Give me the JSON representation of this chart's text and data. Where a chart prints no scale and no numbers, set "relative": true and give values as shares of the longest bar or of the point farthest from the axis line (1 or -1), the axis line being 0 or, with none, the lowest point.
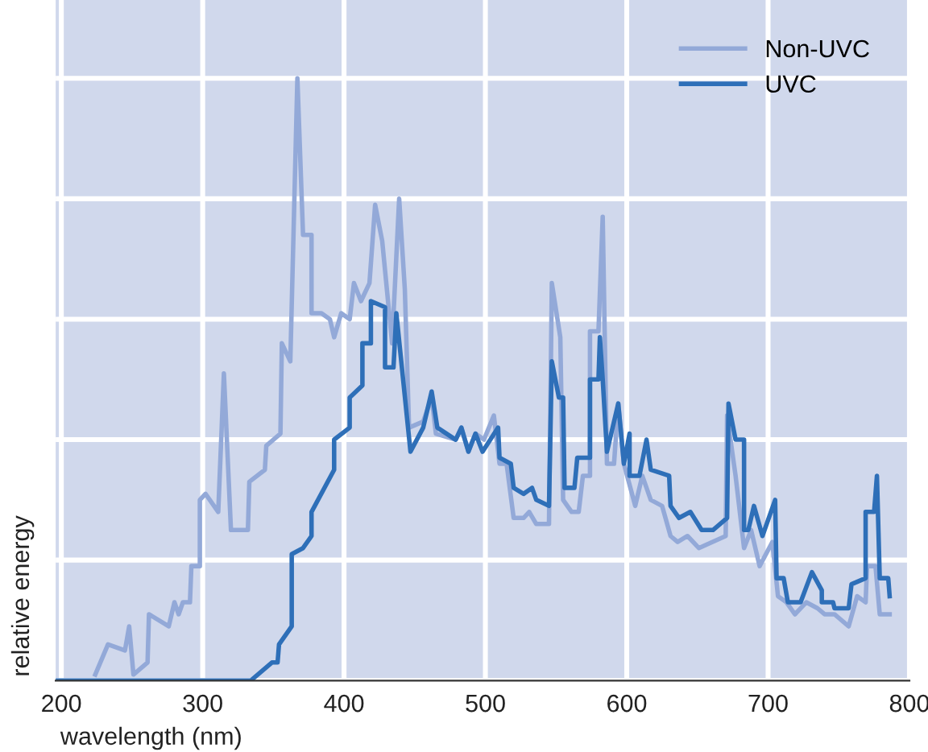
{
  "chart_data": {
    "type": "line",
    "relative": true,
    "xlabel": "wavelength (nm)",
    "ylabel": "relative energy",
    "xlim": [
      196,
      800
    ],
    "xticks": [
      200,
      300,
      400,
      500,
      600,
      700,
      800
    ],
    "grid": true,
    "legend": "top right",
    "tick_labels": "x",
    "series": [
      {
        "name": "Non-UVC",
        "color": "#93a9d8",
        "x": [
          224,
          233,
          245,
          248,
          251,
          261,
          262,
          276,
          280,
          283,
          286,
          291,
          292,
          298,
          298,
          302,
          311,
          315,
          320,
          332,
          333,
          344,
          345,
          355,
          356,
          362,
          367,
          371,
          377,
          377,
          384,
          390,
          393,
          398,
          404,
          407,
          412,
          418,
          422,
          427,
          434,
          439,
          443,
          446,
          456,
          462,
          465,
          479,
          483,
          488,
          493,
          499,
          506,
          510,
          515,
          520,
          527,
          531,
          536,
          545,
          547,
          553,
          555,
          561,
          566,
          569,
          574,
          574,
          580,
          583,
          586,
          591,
          594,
          598,
          606,
          611,
          617,
          625,
          631,
          636,
          643,
          651,
          670,
          671,
          677,
          683,
          688,
          694,
          703,
          707,
          713,
          719,
          727,
          735,
          740,
          747,
          757,
          763,
          769,
          770,
          776,
          779,
          786
        ],
        "values": [
          0.01,
          0.06,
          0.05,
          0.09,
          0.01,
          0.03,
          0.11,
          0.09,
          0.13,
          0.11,
          0.13,
          0.13,
          0.19,
          0.19,
          0.3,
          0.31,
          0.28,
          0.51,
          0.25,
          0.25,
          0.33,
          0.35,
          0.39,
          0.41,
          0.56,
          0.53,
          1,
          0.74,
          0.74,
          0.61,
          0.61,
          0.6,
          0.57,
          0.61,
          0.6,
          0.66,
          0.63,
          0.66,
          0.79,
          0.73,
          0.56,
          0.8,
          0.65,
          0.42,
          0.43,
          0.47,
          0.41,
          0.4,
          0.42,
          0.38,
          0.41,
          0.4,
          0.44,
          0.36,
          0.36,
          0.27,
          0.27,
          0.28,
          0.26,
          0.26,
          0.66,
          0.57,
          0.3,
          0.28,
          0.28,
          0.34,
          0.34,
          0.58,
          0.58,
          0.77,
          0.36,
          0.36,
          0.46,
          0.36,
          0.29,
          0.34,
          0.3,
          0.29,
          0.24,
          0.23,
          0.24,
          0.22,
          0.24,
          0.44,
          0.34,
          0.22,
          0.25,
          0.19,
          0.23,
          0.14,
          0.13,
          0.11,
          0.13,
          0.12,
          0.11,
          0.11,
          0.09,
          0.14,
          0.13,
          0.19,
          0.19,
          0.11,
          0.11
        ]
      },
      {
        "name": "UVC",
        "color": "#2e6fb8",
        "x": [
          196,
          334,
          349,
          353,
          354,
          363,
          363,
          371,
          377,
          377,
          393,
          393,
          404,
          404,
          413,
          413,
          419,
          419,
          429,
          429,
          435,
          437,
          447,
          456,
          462,
          466,
          479,
          483,
          488,
          493,
          498,
          509,
          510,
          518,
          520,
          527,
          533,
          536,
          545,
          547,
          552,
          555,
          556,
          563,
          565,
          574,
          574,
          580,
          581,
          583,
          586,
          594,
          598,
          602,
          602,
          609,
          614,
          617,
          630,
          631,
          637,
          645,
          653,
          661,
          671,
          672,
          677,
          683,
          683,
          686,
          690,
          696,
          705,
          706,
          711,
          714,
          723,
          731,
          738,
          738,
          746,
          747,
          757,
          759,
          769,
          769,
          775,
          777,
          779,
          785,
          786
        ],
        "values": [
          0,
          0,
          0.03,
          0.03,
          0.06,
          0.09,
          0.21,
          0.22,
          0.24,
          0.28,
          0.35,
          0.4,
          0.42,
          0.47,
          0.49,
          0.56,
          0.56,
          0.63,
          0.62,
          0.52,
          0.52,
          0.61,
          0.38,
          0.42,
          0.48,
          0.42,
          0.4,
          0.42,
          0.38,
          0.41,
          0.38,
          0.42,
          0.37,
          0.36,
          0.32,
          0.31,
          0.32,
          0.3,
          0.29,
          0.53,
          0.47,
          0.47,
          0.32,
          0.32,
          0.37,
          0.37,
          0.5,
          0.5,
          0.57,
          0.5,
          0.38,
          0.46,
          0.36,
          0.41,
          0.34,
          0.34,
          0.4,
          0.35,
          0.34,
          0.29,
          0.27,
          0.28,
          0.25,
          0.25,
          0.27,
          0.46,
          0.4,
          0.4,
          0.25,
          0.25,
          0.29,
          0.24,
          0.3,
          0.17,
          0.17,
          0.13,
          0.13,
          0.18,
          0.15,
          0.13,
          0.13,
          0.12,
          0.12,
          0.16,
          0.17,
          0.28,
          0.28,
          0.34,
          0.17,
          0.17,
          0.14
        ]
      }
    ]
  }
}
